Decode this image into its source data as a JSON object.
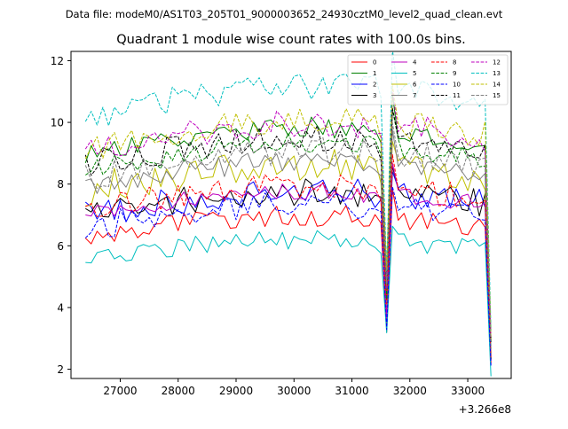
{
  "chart_data": {
    "type": "line",
    "suptitle": "Data file: modeM0/AS1T03_205T01_9000003652_24930cztM0_level2_quad_clean.evt",
    "title": "Quadrant 1 module wise count rates with 100.0s bins.",
    "xlabel": "",
    "ylabel": "",
    "x_offset_label": "+3.266e8",
    "xlim": [
      26150,
      33750
    ],
    "ylim": [
      1.7,
      12.3
    ],
    "x_ticks": [
      27000,
      28000,
      29000,
      30000,
      31000,
      32000,
      33000
    ],
    "x_tick_labels": [
      "27000",
      "28000",
      "29000",
      "30000",
      "31000",
      "32000",
      "33000"
    ],
    "y_ticks": [
      2,
      4,
      6,
      8,
      10,
      12
    ],
    "y_tick_labels": [
      "2",
      "4",
      "6",
      "8",
      "10",
      "12"
    ],
    "x": {
      "start": 26400,
      "step": 100,
      "count": 71
    },
    "legend": {
      "location": "upper right",
      "columns": 4
    },
    "series": [
      {
        "name": "0",
        "color": "#ff0000",
        "dash": "solid",
        "base": 6.3,
        "amp": 0.35,
        "seed": 1
      },
      {
        "name": "1",
        "color": "#008000",
        "dash": "solid",
        "base": 8.9,
        "amp": 0.35,
        "seed": 2
      },
      {
        "name": "2",
        "color": "#0000ff",
        "dash": "solid",
        "base": 7.0,
        "amp": 0.45,
        "seed": 3
      },
      {
        "name": "3",
        "color": "#000000",
        "dash": "solid",
        "base": 7.0,
        "amp": 0.45,
        "seed": 4
      },
      {
        "name": "4",
        "color": "#bf00bf",
        "dash": "solid",
        "base": 7.0,
        "amp": 0.3,
        "seed": 5
      },
      {
        "name": "5",
        "color": "#00bfbf",
        "dash": "solid",
        "base": 5.6,
        "amp": 0.3,
        "seed": 6
      },
      {
        "name": "6",
        "color": "#bfbf00",
        "dash": "solid",
        "base": 7.8,
        "amp": 0.55,
        "seed": 7
      },
      {
        "name": "7",
        "color": "#808080",
        "dash": "solid",
        "base": 7.9,
        "amp": 0.35,
        "seed": 8
      },
      {
        "name": "8",
        "color": "#ff0000",
        "dash": "dashed",
        "base": 7.2,
        "amp": 0.45,
        "seed": 9
      },
      {
        "name": "9",
        "color": "#008000",
        "dash": "dashed",
        "base": 8.4,
        "amp": 0.35,
        "seed": 10
      },
      {
        "name": "10",
        "color": "#0000ff",
        "dash": "dashed",
        "base": 6.6,
        "amp": 0.45,
        "seed": 11
      },
      {
        "name": "11",
        "color": "#000000",
        "dash": "dashed",
        "base": 8.6,
        "amp": 0.45,
        "seed": 12
      },
      {
        "name": "12",
        "color": "#bf00bf",
        "dash": "dashed",
        "base": 9.0,
        "amp": 0.45,
        "seed": 13
      },
      {
        "name": "13",
        "color": "#00bfbf",
        "dash": "dashed",
        "base": 10.1,
        "amp": 0.45,
        "seed": 14
      },
      {
        "name": "14",
        "color": "#bfbf00",
        "dash": "dashed",
        "base": 9.1,
        "amp": 0.45,
        "seed": 15
      },
      {
        "name": "15",
        "color": "#808080",
        "dash": "dashed",
        "base": 8.2,
        "amp": 0.45,
        "seed": 16
      }
    ],
    "features": {
      "drop1_x": 31600,
      "drop1_rel": 0.55,
      "peak_x": 31700,
      "peak_rel": 1.22,
      "drop2_x": 33400,
      "drop2_rel": 0.33
    }
  }
}
